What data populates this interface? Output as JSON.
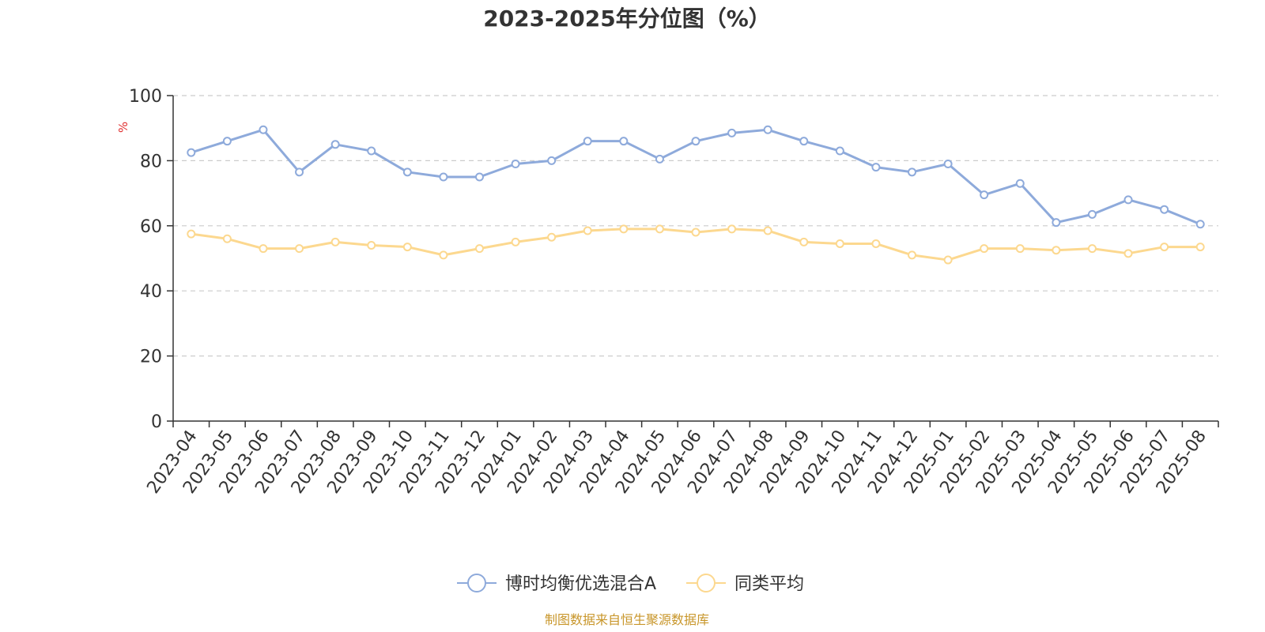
{
  "chart_data": {
    "type": "line",
    "title": "2023-2025年分位图（%）",
    "ylabel": "%",
    "ylim": [
      0,
      100
    ],
    "yticks": [
      0,
      20,
      40,
      60,
      80,
      100
    ],
    "grid": true,
    "legend_position": "bottom",
    "categories": [
      "2023-04",
      "2023-05",
      "2023-06",
      "2023-07",
      "2023-08",
      "2023-09",
      "2023-10",
      "2023-11",
      "2023-12",
      "2024-01",
      "2024-02",
      "2024-03",
      "2024-04",
      "2024-05",
      "2024-06",
      "2024-07",
      "2024-08",
      "2024-09",
      "2024-10",
      "2024-11",
      "2024-12",
      "2025-01",
      "2025-02",
      "2025-03",
      "2025-04",
      "2025-05",
      "2025-06",
      "2025-07",
      "2025-08"
    ],
    "series": [
      {
        "name": "博时均衡优选混合A",
        "color": "#8eaadb",
        "values": [
          82.5,
          86,
          89.5,
          76.5,
          85,
          83,
          76.5,
          75,
          75,
          79,
          80,
          86,
          86,
          80.5,
          86,
          88.5,
          89.5,
          86,
          83,
          78,
          76.5,
          79,
          69.5,
          73,
          61,
          63.5,
          68,
          65,
          60.5
        ]
      },
      {
        "name": "同类平均",
        "color": "#fcd88f",
        "values": [
          57.5,
          56,
          53,
          53,
          55,
          54,
          53.5,
          51,
          53,
          55,
          56.5,
          58.5,
          59,
          59,
          58,
          59,
          58.5,
          55,
          54.5,
          54.5,
          51,
          49.5,
          53,
          53,
          52.5,
          53,
          51.5,
          53.5,
          53.5
        ]
      }
    ],
    "source_note": "制图数据来自恒生聚源数据库",
    "colors": {
      "axis": "#333333",
      "grid": "#cccccc",
      "unit_label": "#e03030",
      "source_note": "#c8962a"
    }
  }
}
